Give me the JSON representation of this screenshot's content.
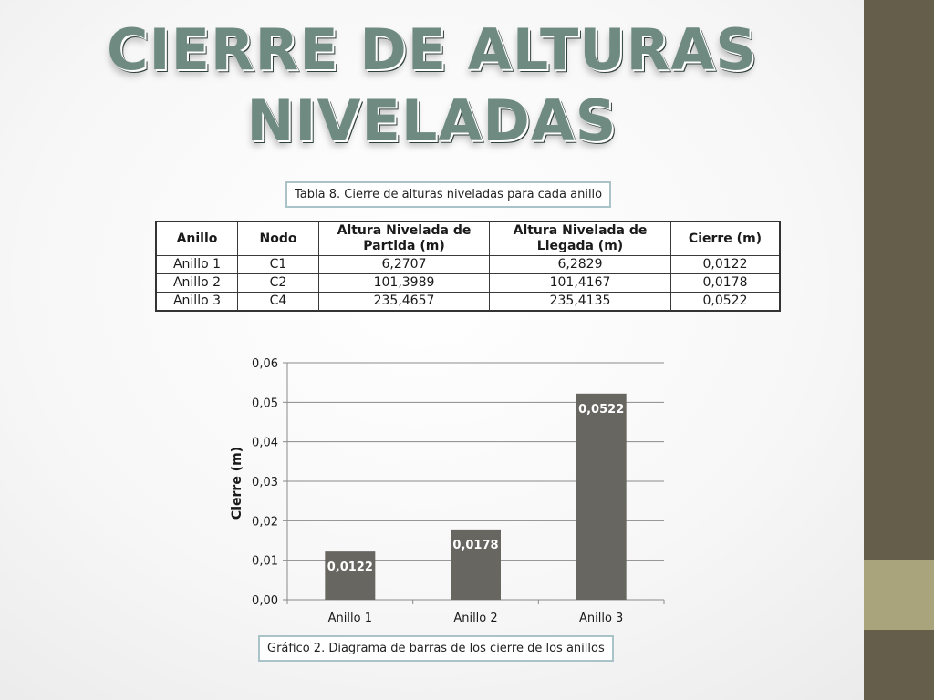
{
  "slide": {
    "title_line1": "CIERRE DE ALTURAS",
    "title_line2": "NIVELADAS",
    "accent_dark": "#655e4a",
    "accent_light": "#a9a47c"
  },
  "table": {
    "caption": "Tabla 8. Cierre de alturas niveladas para cada anillo",
    "headers": [
      "Anillo",
      "Nodo",
      "Altura Nivelada de Partida (m)",
      "Altura Nivelada de Llegada (m)",
      "Cierre (m)"
    ],
    "rows": [
      [
        "Anillo 1",
        "C1",
        "6,2707",
        "6,2829",
        "0,0122"
      ],
      [
        "Anillo 2",
        "C2",
        "101,3989",
        "101,4167",
        "0,0178"
      ],
      [
        "Anillo 3",
        "C4",
        "235,4657",
        "235,4135",
        "0,0522"
      ]
    ]
  },
  "chart_caption": "Gráfico 2. Diagrama de barras de los cierre de los anillos",
  "chart_data": {
    "type": "bar",
    "categories": [
      "Anillo 1",
      "Anillo 2",
      "Anillo 3"
    ],
    "values": [
      0.0122,
      0.0178,
      0.0522
    ],
    "data_labels": [
      "0,0122",
      "0,0178",
      "0,0522"
    ],
    "title": "",
    "xlabel": "",
    "ylabel": "Cierre (m)",
    "ylim": [
      0,
      0.06
    ],
    "yticks": [
      0,
      0.01,
      0.02,
      0.03,
      0.04,
      0.05,
      0.06
    ],
    "ytick_labels": [
      "0,00",
      "0,01",
      "0,02",
      "0,03",
      "0,04",
      "0,05",
      "0,06"
    ],
    "grid": true,
    "legend": "none",
    "bar_color": "#676661"
  }
}
